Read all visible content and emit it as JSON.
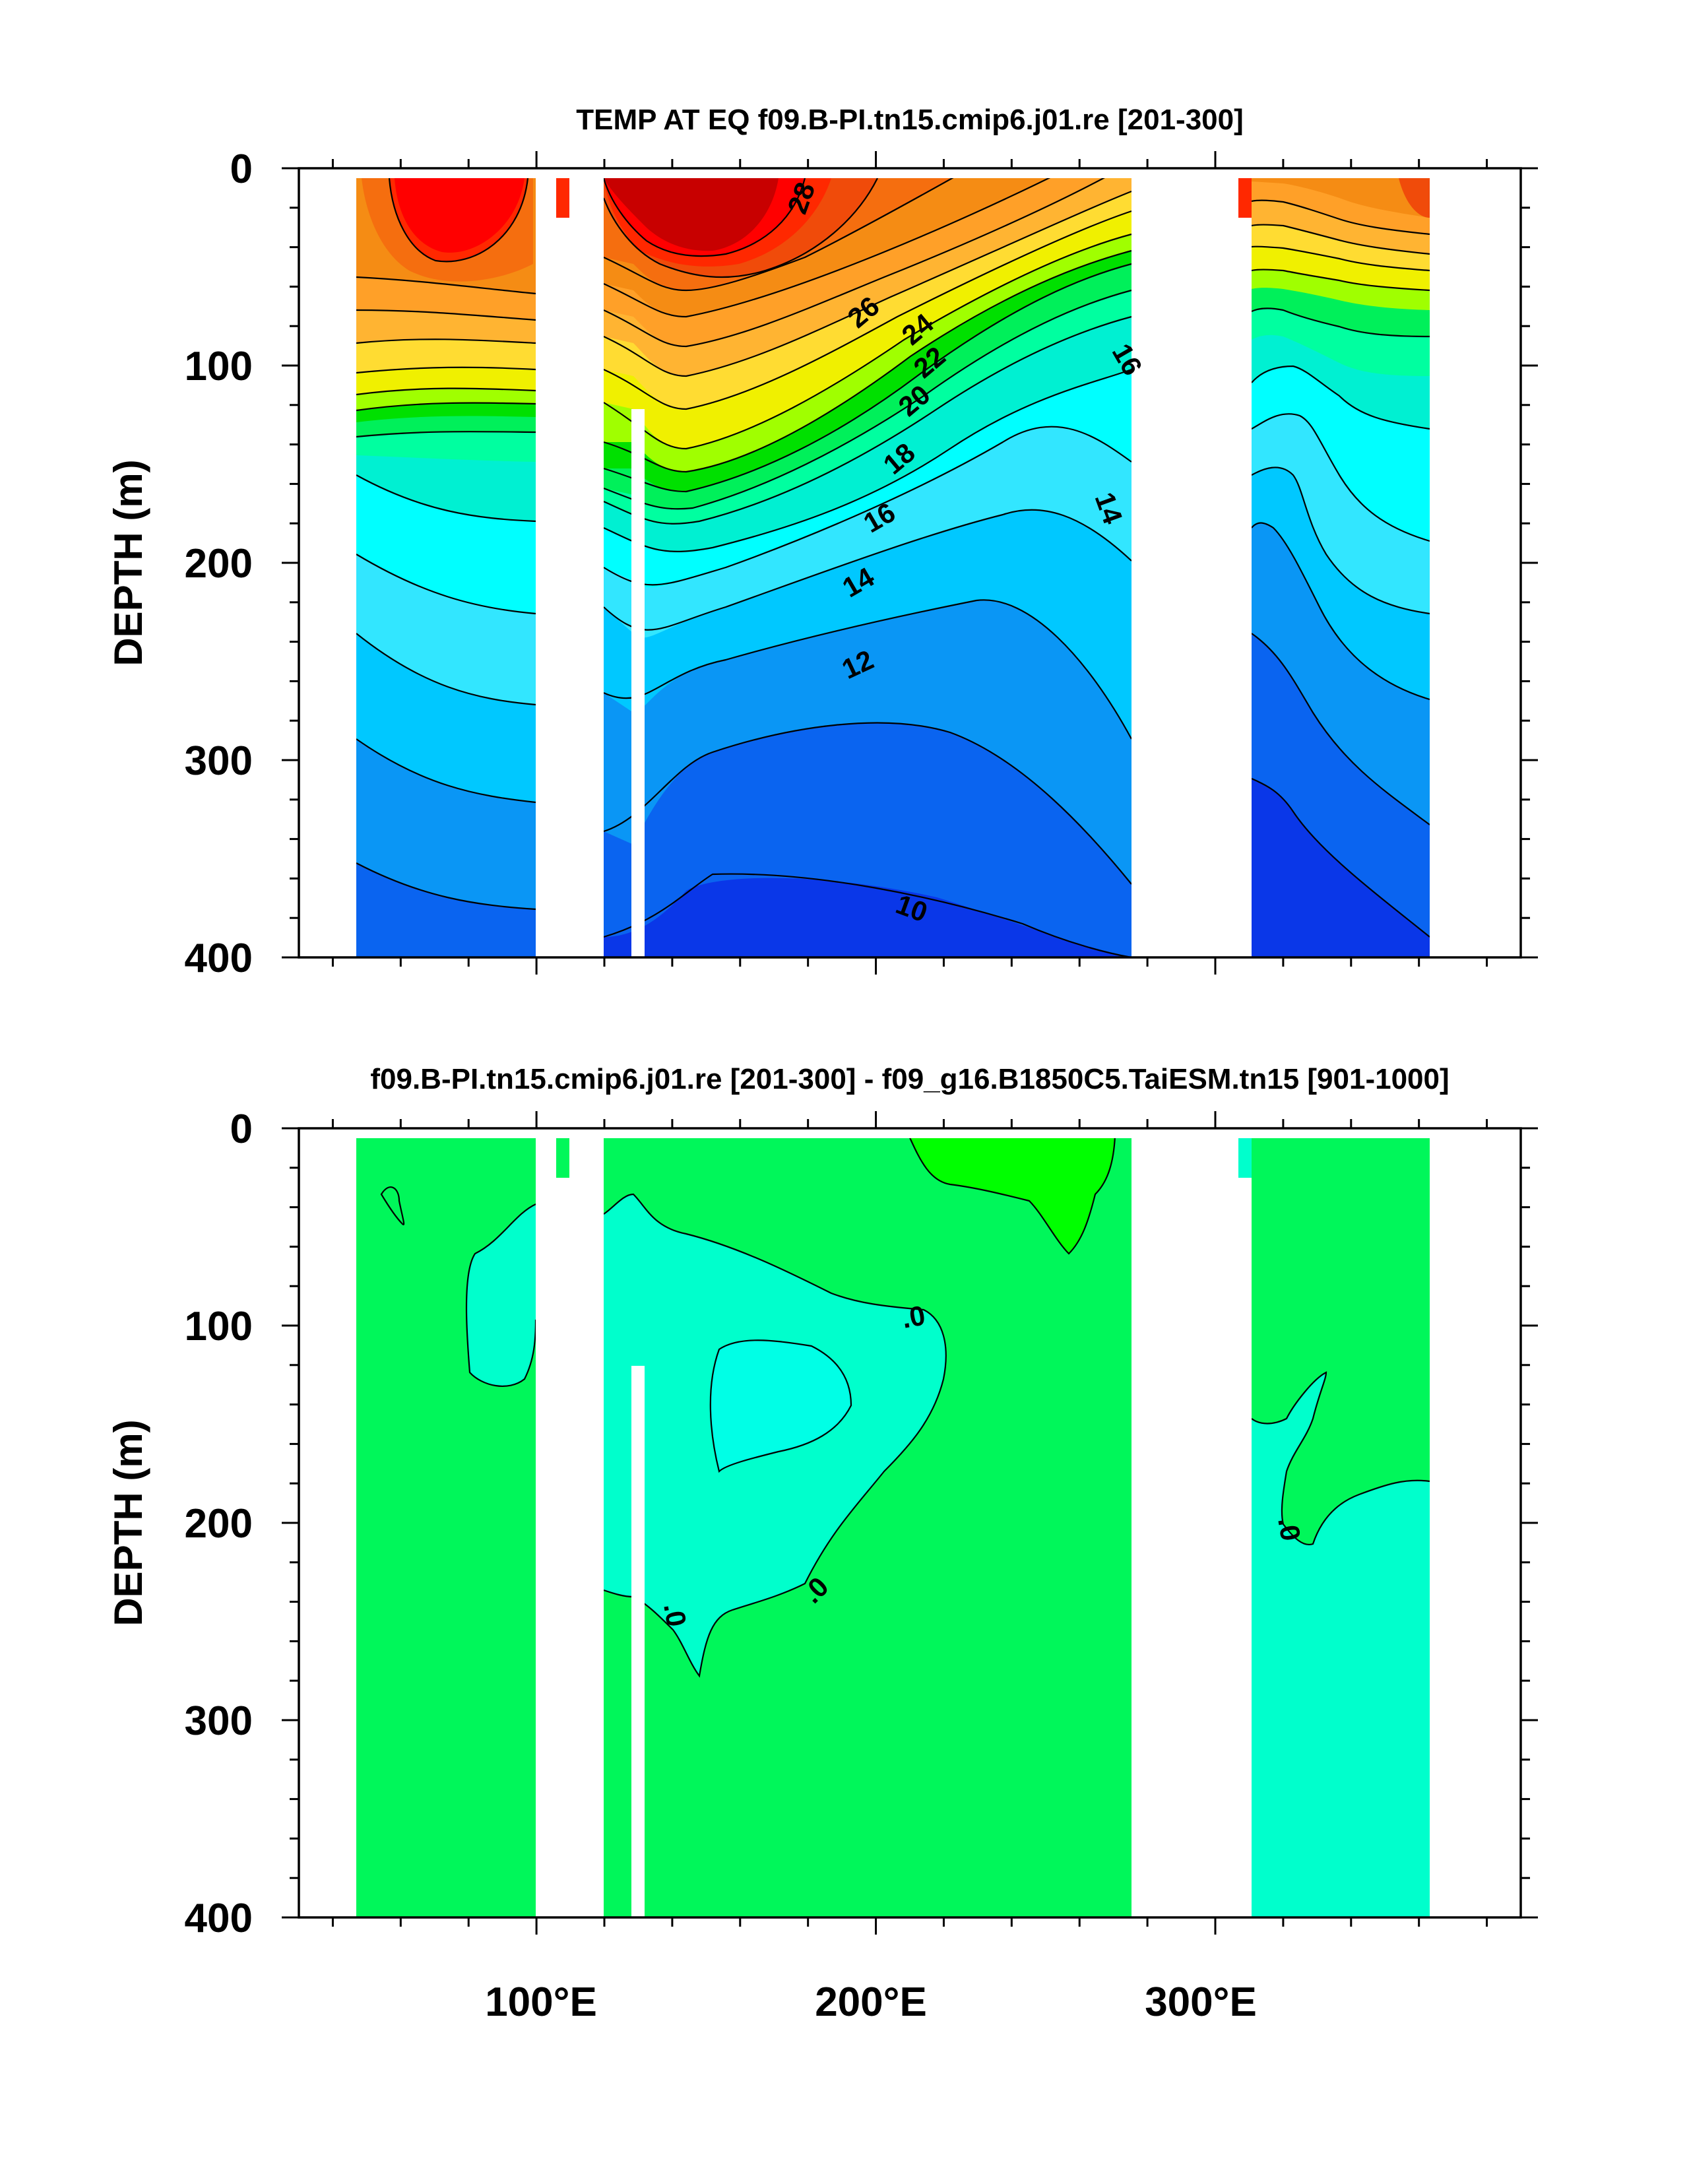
{
  "chart_data": [
    {
      "type": "contour",
      "title": "TEMP AT EQ f09.B-PI.tn15.cmip6.j01.re [201-300]",
      "xlabel": "",
      "ylabel": "DEPTH (m)",
      "xlim": [
        30,
        390
      ],
      "ylim": [
        400,
        0
      ],
      "y_reversed": true,
      "x_ticks": [
        {
          "value": 100,
          "label": "100°E"
        },
        {
          "value": 200,
          "label": "200°E"
        },
        {
          "value": 300,
          "label": "300°E"
        }
      ],
      "y_ticks": [
        {
          "value": 0,
          "label": "0"
        },
        {
          "value": 100,
          "label": "100"
        },
        {
          "value": 200,
          "label": "200"
        },
        {
          "value": 300,
          "label": "300"
        },
        {
          "value": 400,
          "label": "400"
        }
      ],
      "contour_interval": 1,
      "contour_labels": [
        {
          "text": "28",
          "x": 183,
          "y": 17
        },
        {
          "text": "26",
          "x": 200,
          "y": 77
        },
        {
          "text": "24",
          "x": 216,
          "y": 84
        },
        {
          "text": "22",
          "x": 220,
          "y": 103
        },
        {
          "text": "20",
          "x": 215,
          "y": 123
        },
        {
          "text": "18",
          "x": 210,
          "y": 150
        },
        {
          "text": "16",
          "x": 203,
          "y": 180
        },
        {
          "text": "16",
          "x": 273,
          "y": 98
        },
        {
          "text": "14",
          "x": 197,
          "y": 216
        },
        {
          "text": "14",
          "x": 269,
          "y": 173
        },
        {
          "text": "12",
          "x": 197,
          "y": 255
        },
        {
          "text": "10",
          "x": 211,
          "y": 375
        }
      ],
      "fill_colors": [
        "#0000c8",
        "#0a37e8",
        "#0a64f0",
        "#0a96f5",
        "#00c8ff",
        "#32e6ff",
        "#00ffff",
        "#00f0d2",
        "#00ffa0",
        "#00f05a",
        "#00e000",
        "#a0ff00",
        "#f0f000",
        "#ffdc32",
        "#ffb432",
        "#ffa028",
        "#f58c14",
        "#f56e0f",
        "#f04b0a",
        "#ff2800",
        "#e60000",
        "#c80000"
      ]
    },
    {
      "type": "contour",
      "title": "f09.B-PI.tn15.cmip6.j01.re [201-300] - f09_g16.B1850C5.TaiESM.tn15 [901-1000]",
      "xlabel": "",
      "ylabel": "DEPTH (m)",
      "xlim": [
        30,
        390
      ],
      "ylim": [
        400,
        0
      ],
      "y_reversed": true,
      "x_ticks": [
        {
          "value": 100,
          "label": "100°E"
        },
        {
          "value": 200,
          "label": "200°E"
        },
        {
          "value": 300,
          "label": "300°E"
        }
      ],
      "y_ticks": [
        {
          "value": 0,
          "label": "0"
        },
        {
          "value": 100,
          "label": "100"
        },
        {
          "value": 200,
          "label": "200"
        },
        {
          "value": 300,
          "label": "300"
        },
        {
          "value": 400,
          "label": "400"
        }
      ],
      "contour_labels": [
        {
          "text": ".0",
          "x": 213,
          "y": 100
        },
        {
          "text": ".0",
          "x": 188,
          "y": 233
        },
        {
          "text": ".0",
          "x": 125,
          "y": 243
        },
        {
          "text": ".0",
          "x": 323,
          "y": 210
        }
      ],
      "fill_colors": {
        "background": "#00f75a",
        "negative": "#00ffcc",
        "strong_negative": "#00ffe6",
        "positive": "#00ff00"
      }
    }
  ]
}
